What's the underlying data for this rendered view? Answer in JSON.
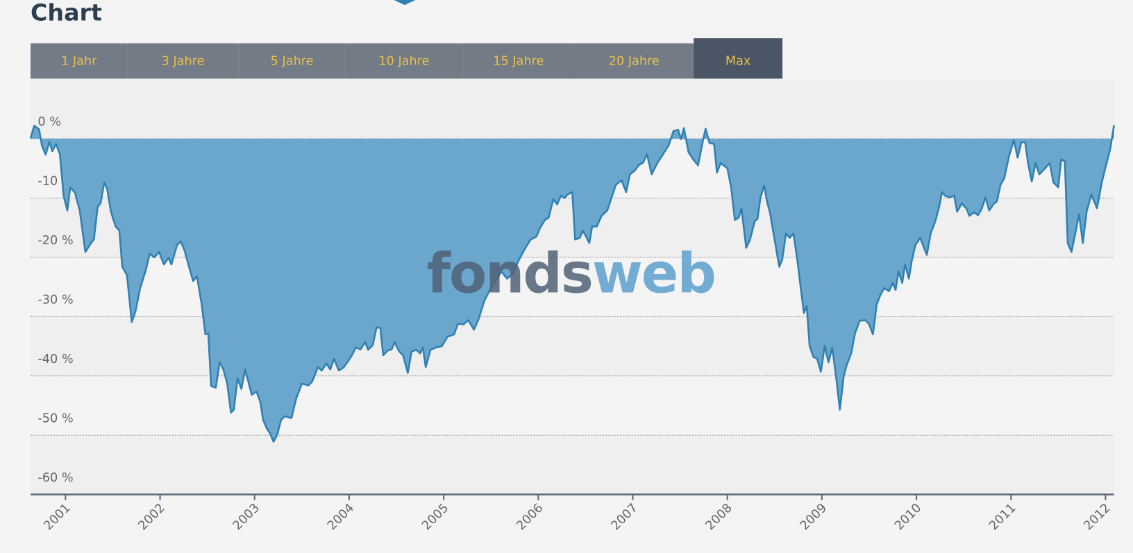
{
  "title": "Chart",
  "tabs": [
    "1 Jahr",
    "3 Jahre",
    "5 Jahre",
    "10 Jahre",
    "15 Jahre",
    "20 Jahre",
    "Max"
  ],
  "active_tab": 6,
  "watermark": [
    "fonds",
    "web"
  ],
  "chart_data": {
    "type": "area",
    "color": "#6ba7cc",
    "line_color": "#2f80b3",
    "grid": true,
    "xlim": [
      2000.63,
      2012.09
    ],
    "xticks": [
      2001,
      2002,
      2003,
      2004,
      2005,
      2006,
      2007,
      2008,
      2009,
      2010,
      2011,
      2012
    ],
    "ylim": [
      -60,
      10
    ],
    "yticks": [
      {
        "value": 0,
        "label": "0 %"
      },
      {
        "value": -10,
        "label": "-10 %"
      },
      {
        "value": -20,
        "label": "-20 %"
      },
      {
        "value": -30,
        "label": "-30 %"
      },
      {
        "value": -40,
        "label": "-40 %"
      },
      {
        "value": -50,
        "label": "-50 %"
      },
      {
        "value": -60,
        "label": "-60 %"
      }
    ],
    "x": [
      2000.63,
      2000.67,
      2000.72,
      2000.75,
      2000.79,
      2000.83,
      2000.86,
      2000.9,
      2000.94,
      2000.98,
      2001.02,
      2001.05,
      2001.1,
      2001.15,
      2001.21,
      2001.27,
      2001.3,
      2001.34,
      2001.37,
      2001.41,
      2001.44,
      2001.48,
      2001.53,
      2001.57,
      2001.6,
      2001.65,
      2001.7,
      2001.74,
      2001.79,
      2001.85,
      2001.89,
      2001.94,
      2001.99,
      2002.04,
      2002.09,
      2002.12,
      2002.18,
      2002.22,
      2002.26,
      2002.31,
      2002.35,
      2002.39,
      2002.44,
      2002.48,
      2002.51,
      2002.54,
      2002.59,
      2002.63,
      2002.67,
      2002.71,
      2002.75,
      2002.78,
      2002.82,
      2002.86,
      2002.9,
      2002.93,
      2002.97,
      2003.02,
      2003.06,
      2003.09,
      2003.13,
      2003.16,
      2003.2,
      2003.24,
      2003.28,
      2003.32,
      2003.39,
      2003.44,
      2003.5,
      2003.57,
      2003.61,
      2003.67,
      2003.71,
      2003.76,
      2003.8,
      2003.84,
      2003.89,
      2003.94,
      2003.98,
      2004.03,
      2004.07,
      2004.12,
      2004.17,
      2004.2,
      2004.25,
      2004.29,
      2004.33,
      2004.36,
      2004.41,
      2004.45,
      2004.48,
      2004.53,
      2004.57,
      2004.62,
      2004.66,
      2004.71,
      2004.75,
      2004.78,
      2004.81,
      2004.86,
      2004.92,
      2004.98,
      2005.04,
      2005.11,
      2005.15,
      2005.21,
      2005.26,
      2005.32,
      2005.37,
      2005.43,
      2005.49,
      2005.55,
      2005.61,
      2005.67,
      2005.73,
      2005.79,
      2005.85,
      2005.92,
      2005.98,
      2006.02,
      2006.07,
      2006.11,
      2006.16,
      2006.2,
      2006.24,
      2006.28,
      2006.31,
      2006.36,
      2006.39,
      2006.44,
      2006.47,
      2006.5,
      2006.54,
      2006.57,
      2006.62,
      2006.67,
      2006.73,
      2006.77,
      2006.82,
      2006.88,
      2006.93,
      2006.97,
      2007.02,
      2007.06,
      2007.11,
      2007.15,
      2007.2,
      2007.26,
      2007.32,
      2007.38,
      2007.43,
      2007.48,
      2007.51,
      2007.54,
      2007.59,
      2007.64,
      2007.69,
      2007.74,
      2007.77,
      2007.81,
      2007.86,
      2007.89,
      2007.93,
      2008.0,
      2008.04,
      2008.08,
      2008.12,
      2008.15,
      2008.2,
      2008.24,
      2008.29,
      2008.32,
      2008.35,
      2008.39,
      2008.42,
      2008.45,
      2008.5,
      2008.55,
      2008.58,
      2008.62,
      2008.66,
      2008.7,
      2008.74,
      2008.78,
      2008.81,
      2008.84,
      2008.87,
      2008.91,
      2008.95,
      2008.99,
      2009.03,
      2009.07,
      2009.11,
      2009.15,
      2009.19,
      2009.23,
      2009.26,
      2009.31,
      2009.35,
      2009.4,
      2009.46,
      2009.5,
      2009.54,
      2009.58,
      2009.62,
      2009.66,
      2009.71,
      2009.75,
      2009.78,
      2009.81,
      2009.85,
      2009.88,
      2009.92,
      2009.95,
      2009.99,
      2010.04,
      2010.08,
      2010.11,
      2010.15,
      2010.2,
      2010.24,
      2010.27,
      2010.3,
      2010.35,
      2010.4,
      2010.43,
      2010.48,
      2010.53,
      2010.56,
      2010.61,
      2010.65,
      2010.69,
      2010.73,
      2010.77,
      2010.82,
      2010.85,
      2010.89,
      2010.93,
      2010.98,
      2011.03,
      2011.07,
      2011.11,
      2011.15,
      2011.18,
      2011.22,
      2011.26,
      2011.3,
      2011.36,
      2011.41,
      2011.45,
      2011.5,
      2011.53,
      2011.57,
      2011.6,
      2011.64,
      2011.68,
      2011.72,
      2011.76,
      2011.8,
      2011.85,
      2011.91,
      2011.96,
      2012.0,
      2012.05,
      2012.09
    ],
    "values": [
      0.1,
      2.2,
      1.6,
      -1.1,
      -2.7,
      -0.5,
      -2.1,
      -0.9,
      -2.6,
      -9.6,
      -12.1,
      -8.2,
      -9.1,
      -12.1,
      -19.1,
      -17.6,
      -17,
      -11.5,
      -10.9,
      -7.4,
      -8.4,
      -12.3,
      -14.8,
      -15.5,
      -21.6,
      -23,
      -30.9,
      -29.1,
      -25.2,
      -22.1,
      -19.4,
      -20,
      -19.1,
      -21.2,
      -20.1,
      -21.2,
      -17.9,
      -17.3,
      -18.9,
      -21.8,
      -24,
      -23.2,
      -27.9,
      -33,
      -32.8,
      -41.7,
      -42,
      -37.7,
      -38.9,
      -41.3,
      -46.2,
      -45.7,
      -40.4,
      -42.2,
      -38.9,
      -40.7,
      -43.2,
      -42.6,
      -44.4,
      -47.4,
      -48.9,
      -49.6,
      -51.1,
      -49.9,
      -47.4,
      -46.8,
      -47.1,
      -43.8,
      -41.3,
      -41.6,
      -40.9,
      -38.5,
      -39.1,
      -37.9,
      -38.9,
      -37.1,
      -39.1,
      -38.6,
      -37.7,
      -36.5,
      -35.2,
      -35.5,
      -34.3,
      -35.6,
      -34.8,
      -31.8,
      -31.9,
      -36.5,
      -35.7,
      -35.5,
      -34.3,
      -35.9,
      -36.5,
      -39.5,
      -35.9,
      -35.6,
      -36.2,
      -35.2,
      -38.5,
      -35.6,
      -35.2,
      -35,
      -33.4,
      -33,
      -31.2,
      -31.3,
      -30.6,
      -32.2,
      -30.4,
      -27.3,
      -25.5,
      -24,
      -22.4,
      -23.6,
      -22.8,
      -20.6,
      -18.8,
      -17,
      -16.5,
      -15,
      -13.7,
      -13.3,
      -10.2,
      -11.1,
      -9.6,
      -10,
      -9.4,
      -9,
      -17,
      -16.7,
      -15.5,
      -16.3,
      -17.6,
      -14.8,
      -14.8,
      -13,
      -12.1,
      -10.2,
      -7.8,
      -7,
      -9,
      -6,
      -5.4,
      -4.5,
      -4,
      -2.6,
      -6,
      -4.1,
      -2.6,
      -1.1,
      1.3,
      1.5,
      -0.1,
      1.8,
      -2.3,
      -3.5,
      -4.5,
      -0.5,
      1.7,
      -0.7,
      -0.9,
      -5.7,
      -4.1,
      -5,
      -8.2,
      -13.7,
      -13.3,
      -11.8,
      -18.4,
      -17,
      -13.9,
      -13.5,
      -9.9,
      -7.9,
      -10.6,
      -12.4,
      -17,
      -21.6,
      -20.4,
      -16,
      -16.7,
      -16,
      -20.4,
      -25.7,
      -29.4,
      -28.2,
      -34.9,
      -36.8,
      -37.1,
      -39.3,
      -34.9,
      -37.7,
      -35.2,
      -40.1,
      -45.7,
      -40.1,
      -38.3,
      -36.2,
      -32.8,
      -30.7,
      -30.6,
      -31.3,
      -33,
      -27.9,
      -26.3,
      -25.2,
      -25.7,
      -24.3,
      -25.5,
      -22.4,
      -24.3,
      -21.2,
      -23.6,
      -20.6,
      -17.9,
      -16.7,
      -18.4,
      -19.6,
      -16,
      -13.9,
      -11.5,
      -9,
      -9.6,
      -9.9,
      -9.6,
      -12.3,
      -10.9,
      -11.8,
      -13,
      -12.4,
      -12.9,
      -11.8,
      -9.9,
      -12.1,
      -10.9,
      -10.6,
      -7.8,
      -6.6,
      -2.9,
      -0.2,
      -3.2,
      -0.6,
      -0.6,
      -4.1,
      -7.2,
      -4.1,
      -6,
      -5,
      -4.1,
      -7.4,
      -8.2,
      -3.5,
      -3.8,
      -17.6,
      -19.1,
      -16,
      -12.7,
      -17.6,
      -12.3,
      -9.4,
      -11.7,
      -7.4,
      -4.8,
      -1.7,
      2.3
    ]
  }
}
